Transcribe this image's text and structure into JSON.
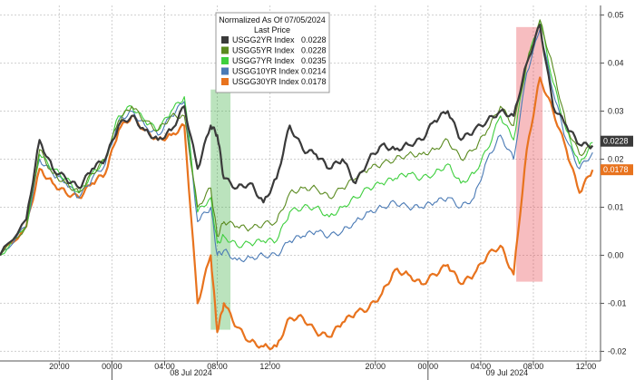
{
  "chart_data": {
    "type": "line",
    "legend": {
      "title": "Normalized As Of 07/05/2024",
      "subtitle": "Last Price",
      "entries": [
        {
          "name": "USGG2YR Index",
          "value": "0.0228"
        },
        {
          "name": "USGG5YR Index",
          "value": "0.0228"
        },
        {
          "name": "USGG7YR Index",
          "value": "0.0235"
        },
        {
          "name": "USGG10YR Index",
          "value": "0.0214"
        },
        {
          "name": "USGG30YR Index",
          "value": "0.0178"
        }
      ]
    },
    "ylim": [
      -0.022,
      0.052
    ],
    "y_ticks": [
      "0.05",
      "0.04",
      "0.03",
      "0.02",
      "0.01",
      "0.00",
      "-0.01",
      "-0.02"
    ],
    "x_ticks": [
      {
        "x": 0.5,
        "label": "20:00"
      },
      {
        "x": 4.5,
        "label": "00:00"
      },
      {
        "x": 8.5,
        "label": "04:00"
      },
      {
        "x": 12.5,
        "label": "08:00"
      },
      {
        "x": 16.5,
        "label": "12:00"
      },
      {
        "x": 24.5,
        "label": "20:00"
      },
      {
        "x": 28.5,
        "label": "00:00"
      },
      {
        "x": 32.5,
        "label": "04:00"
      },
      {
        "x": 36.5,
        "label": "08:00"
      },
      {
        "x": 40.5,
        "label": "12:00"
      }
    ],
    "day_labels": [
      {
        "x": 10.5,
        "label": "08 Jul 2024"
      },
      {
        "x": 34.5,
        "label": "09 Jul 2024"
      }
    ],
    "highlights": [
      {
        "x0": 12.0,
        "x1": 13.5,
        "y0": -0.0155,
        "y1": 0.0345,
        "color": "#3cb043"
      },
      {
        "x0": 35.2,
        "x1": 37.2,
        "y0": -0.0055,
        "y1": 0.0475,
        "color": "#e8414a"
      }
    ],
    "series": [
      {
        "name": "USGG2YR Index",
        "last": "0.0228",
        "color": "#3a3a3a",
        "x": [
          -4,
          -2,
          -1,
          0,
          1,
          2,
          3,
          4,
          5,
          6,
          7,
          8,
          9,
          10,
          11,
          12,
          12.5,
          13,
          14,
          15,
          16,
          17,
          18,
          19,
          20,
          21,
          22,
          23,
          24,
          25,
          26,
          27,
          28,
          29,
          30,
          31,
          32,
          33,
          34,
          35,
          36,
          37,
          38,
          39,
          40,
          41
        ],
        "y": [
          0,
          0.0075,
          0.024,
          0.018,
          0.016,
          0.014,
          0.018,
          0.02,
          0.027,
          0.029,
          0.026,
          0.024,
          0.026,
          0.031,
          0.018,
          0.027,
          0.025,
          0.016,
          0.014,
          0.015,
          0.011,
          0.016,
          0.027,
          0.022,
          0.021,
          0.018,
          0.02,
          0.015,
          0.02,
          0.023,
          0.022,
          0.023,
          0.024,
          0.028,
          0.03,
          0.024,
          0.026,
          0.028,
          0.03,
          0.029,
          0.04,
          0.048,
          0.031,
          0.027,
          0.023,
          0.0228
        ]
      },
      {
        "name": "USGG5YR Index",
        "last": "0.0228",
        "color": "#5a8a1f",
        "x": [
          -4,
          -2,
          -1,
          0,
          1,
          2,
          3,
          4,
          5,
          6,
          7,
          8,
          9,
          10,
          11,
          12,
          12.5,
          13,
          14,
          15,
          16,
          17,
          18,
          19,
          20,
          21,
          22,
          23,
          24,
          25,
          26,
          27,
          28,
          29,
          30,
          31,
          32,
          33,
          34,
          35,
          36,
          37,
          38,
          39,
          40,
          41
        ],
        "y": [
          0,
          0.006,
          0.022,
          0.017,
          0.015,
          0.013,
          0.017,
          0.02,
          0.028,
          0.031,
          0.028,
          0.026,
          0.029,
          0.029,
          0.01,
          0.014,
          0.004,
          0.007,
          0.006,
          0.0055,
          0.0065,
          0.007,
          0.013,
          0.014,
          0.014,
          0.012,
          0.014,
          0.016,
          0.018,
          0.019,
          0.02,
          0.021,
          0.021,
          0.022,
          0.024,
          0.02,
          0.022,
          0.026,
          0.031,
          0.027,
          0.04,
          0.049,
          0.039,
          0.027,
          0.021,
          0.0228
        ]
      },
      {
        "name": "USGG7YR Index",
        "last": "0.0235",
        "color": "#3ecf3e",
        "x": [
          -4,
          -2,
          -1,
          0,
          1,
          2,
          3,
          4,
          5,
          6,
          7,
          8,
          9,
          10,
          11,
          12,
          12.5,
          13,
          14,
          15,
          16,
          17,
          18,
          19,
          20,
          21,
          22,
          23,
          24,
          25,
          26,
          27,
          28,
          29,
          30,
          31,
          32,
          33,
          34,
          35,
          36,
          37,
          38,
          39,
          40,
          41
        ],
        "y": [
          0,
          0.006,
          0.021,
          0.018,
          0.016,
          0.013,
          0.017,
          0.02,
          0.029,
          0.031,
          0.028,
          0.026,
          0.03,
          0.033,
          0.009,
          0.012,
          0.0025,
          0.004,
          0.002,
          0.0025,
          0.003,
          0.003,
          0.009,
          0.01,
          0.01,
          0.008,
          0.01,
          0.012,
          0.014,
          0.015,
          0.016,
          0.017,
          0.016,
          0.017,
          0.019,
          0.015,
          0.017,
          0.022,
          0.029,
          0.024,
          0.04,
          0.049,
          0.036,
          0.026,
          0.019,
          0.0235
        ]
      },
      {
        "name": "USGG10YR Index",
        "last": "0.0214",
        "color": "#4a7ab5",
        "x": [
          -4,
          -2,
          -1,
          0,
          1,
          2,
          3,
          4,
          5,
          6,
          7,
          8,
          9,
          10,
          11,
          12,
          12.5,
          13,
          14,
          15,
          16,
          17,
          18,
          19,
          20,
          21,
          22,
          23,
          24,
          25,
          26,
          27,
          28,
          29,
          30,
          31,
          32,
          33,
          34,
          35,
          36,
          37,
          38,
          39,
          40,
          41
        ],
        "y": [
          0,
          0.006,
          0.02,
          0.017,
          0.015,
          0.012,
          0.016,
          0.019,
          0.028,
          0.03,
          0.027,
          0.025,
          0.029,
          0.032,
          0.007,
          0.01,
          0.0,
          0.001,
          -0.001,
          -0.0005,
          0.0,
          0.0,
          0.003,
          0.004,
          0.005,
          0.004,
          0.005,
          0.007,
          0.009,
          0.01,
          0.011,
          0.01,
          0.01,
          0.011,
          0.012,
          0.01,
          0.012,
          0.02,
          0.025,
          0.02,
          0.038,
          0.047,
          0.034,
          0.024,
          0.018,
          0.0214
        ]
      },
      {
        "name": "USGG30YR Index",
        "last": "0.0178",
        "color": "#e8731e",
        "x": [
          -4,
          -2,
          -1,
          0,
          1,
          2,
          3,
          4,
          5,
          6,
          7,
          8,
          9,
          10,
          11,
          12,
          12.5,
          13,
          14,
          15,
          16,
          17,
          18,
          19,
          20,
          21,
          22,
          23,
          24,
          25,
          26,
          27,
          28,
          29,
          30,
          31,
          32,
          33,
          34,
          35,
          36,
          37,
          38,
          39,
          40,
          41
        ],
        "y": [
          0,
          0.006,
          0.018,
          0.015,
          0.013,
          0.012,
          0.015,
          0.017,
          0.026,
          0.029,
          0.026,
          0.024,
          0.025,
          0.027,
          -0.01,
          0.0,
          -0.016,
          -0.01,
          -0.015,
          -0.018,
          -0.019,
          -0.019,
          -0.013,
          -0.013,
          -0.016,
          -0.017,
          -0.014,
          -0.012,
          -0.011,
          -0.008,
          -0.003,
          -0.004,
          -0.006,
          -0.004,
          -0.002,
          -0.006,
          -0.004,
          0.0,
          0.002,
          -0.004,
          0.022,
          0.037,
          0.03,
          0.022,
          0.013,
          0.0178
        ]
      }
    ]
  }
}
